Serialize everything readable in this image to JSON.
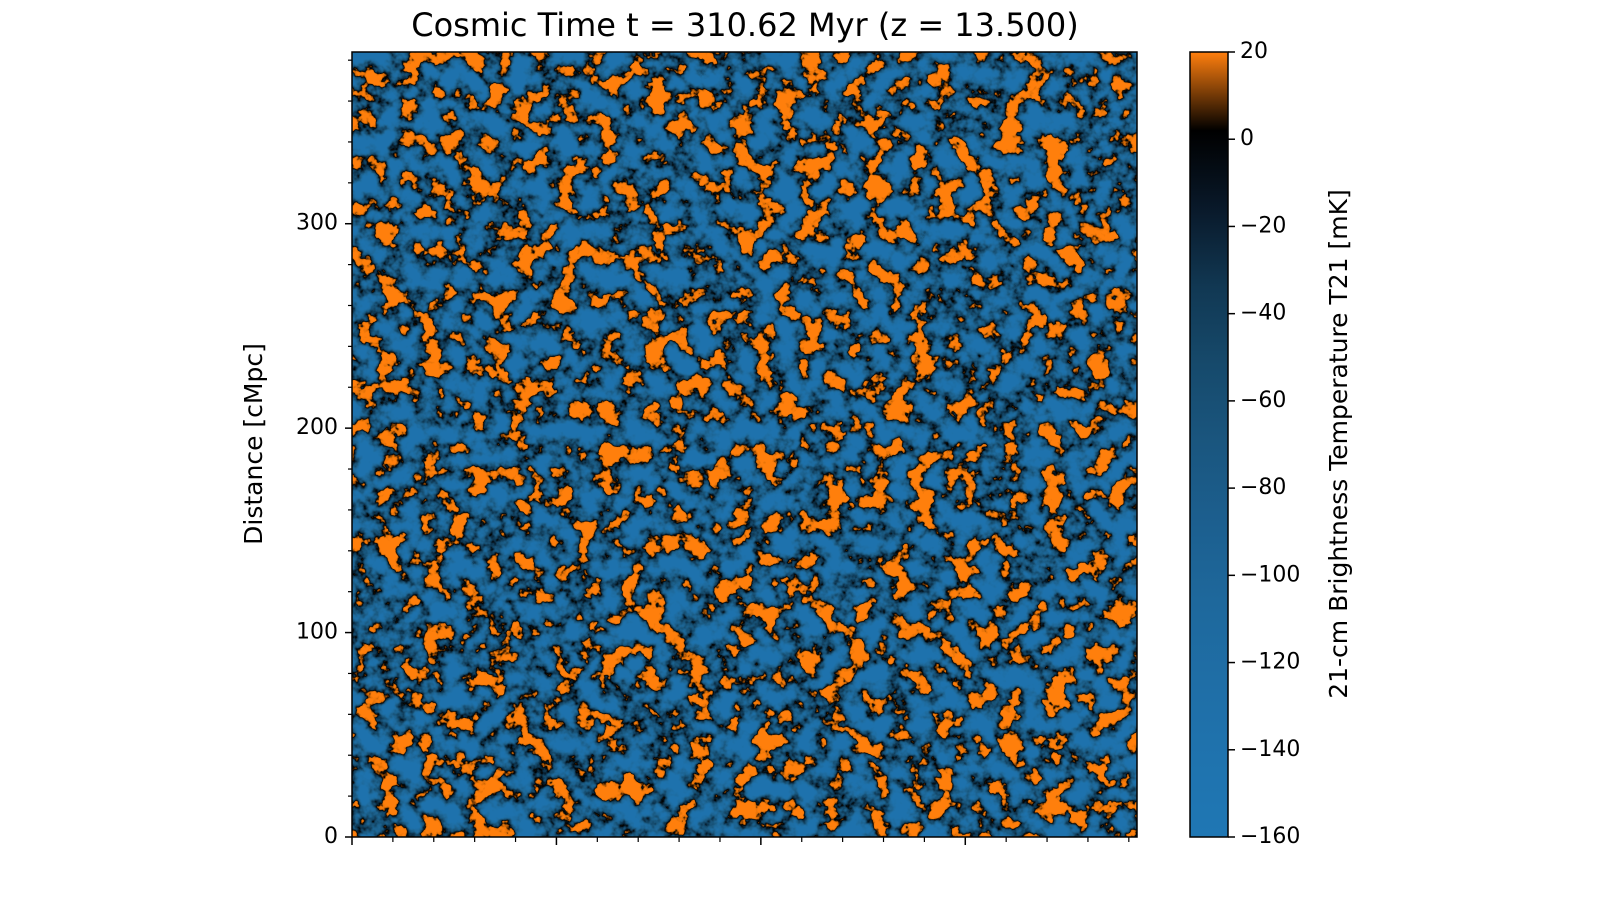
{
  "chart_data": {
    "type": "heatmap",
    "title": "Cosmic Time t = 310.62 Myr (z = 13.500)",
    "ylabel": "Distance [cMpc]",
    "xlim": [
      0,
      384
    ],
    "ylim": [
      0,
      384
    ],
    "xticks": [
      0,
      100,
      200,
      300
    ],
    "xtick_labels": false,
    "yticks": [
      0,
      100,
      200,
      300
    ],
    "xminor_ticks": [
      20,
      40,
      60,
      80,
      120,
      140,
      160,
      180,
      220,
      240,
      260,
      280,
      320,
      340,
      360,
      380
    ],
    "yminor_ticks": [
      20,
      40,
      60,
      80,
      120,
      140,
      160,
      180,
      220,
      240,
      260,
      280,
      320,
      340,
      360,
      380
    ],
    "colorbar_label": "21-cm Brightness Temperature T21 [mK]",
    "clim": [
      -160,
      20
    ],
    "cticks": [
      {
        "value": -160,
        "label": "−160"
      },
      {
        "value": -140,
        "label": "−140"
      },
      {
        "value": -120,
        "label": "−120"
      },
      {
        "value": -100,
        "label": "−100"
      },
      {
        "value": -80,
        "label": "−80"
      },
      {
        "value": -60,
        "label": "−60"
      },
      {
        "value": -40,
        "label": "−40"
      },
      {
        "value": -20,
        "label": "−20"
      },
      0,
      20
    ],
    "cmap_colors": [
      "#1f77b4",
      "#1f73ae",
      "#1f6ea6",
      "#1e689c",
      "#1c5f8f",
      "#1a567f",
      "#164a6c",
      "#113853",
      "#09192a",
      "#000000",
      "#ff7f0e"
    ]
  }
}
